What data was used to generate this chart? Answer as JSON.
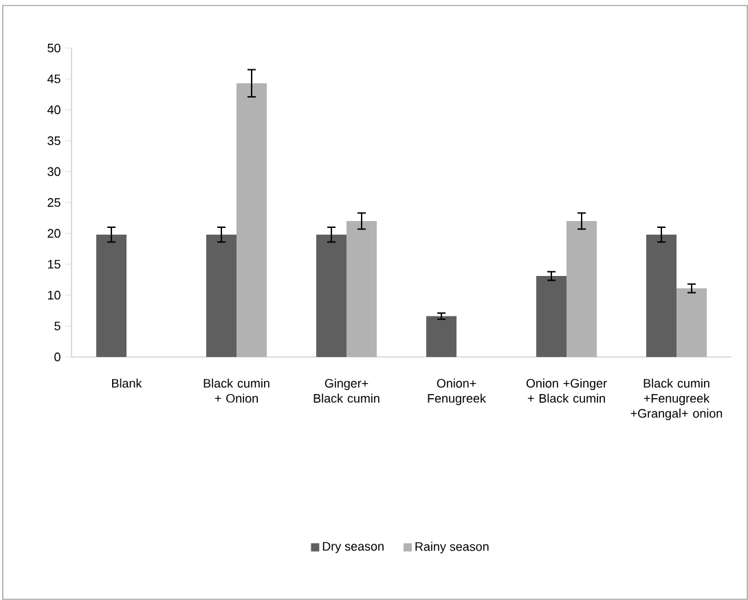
{
  "chart_data": {
    "type": "bar",
    "categories": [
      "Blank",
      "Black cumin + Onion",
      "Ginger+ Black cumin",
      "Onion+ Fenugreek",
      "Onion +Ginger + Black cumin",
      "Black cumin +Fenugreek +Grangal+ onion"
    ],
    "series": [
      {
        "name": "Dry season",
        "color": "#5f5f5f",
        "values": [
          19.8,
          19.8,
          19.8,
          6.6,
          13.1,
          19.8
        ],
        "errors": [
          1.2,
          1.2,
          1.2,
          0.5,
          0.7,
          1.2
        ]
      },
      {
        "name": "Rainy season",
        "color": "#b2b2b2",
        "values": [
          null,
          44.3,
          22,
          null,
          22,
          11.1
        ],
        "errors": [
          null,
          2.2,
          1.3,
          null,
          1.3,
          0.7
        ]
      }
    ],
    "ylim": [
      0,
      50
    ],
    "yticks": [
      0,
      5,
      10,
      15,
      20,
      25,
      30,
      35,
      40,
      45,
      50
    ],
    "grid": false,
    "legend": "bottom"
  }
}
